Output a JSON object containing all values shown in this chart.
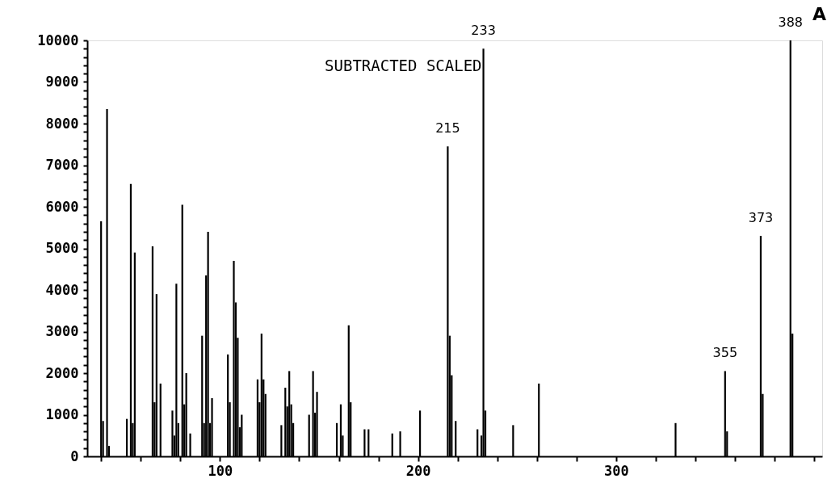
{
  "chart_data": {
    "type": "bar",
    "title": "SUBTRACTED SCALED",
    "x": [
      40,
      41,
      43,
      44,
      53,
      55,
      56,
      57,
      66,
      67,
      68,
      70,
      76,
      77,
      78,
      79,
      81,
      82,
      83,
      85,
      91,
      92,
      93,
      94,
      95,
      96,
      104,
      105,
      107,
      108,
      109,
      110,
      111,
      119,
      120,
      121,
      122,
      123,
      131,
      133,
      134,
      135,
      136,
      137,
      145,
      147,
      148,
      149,
      159,
      161,
      162,
      165,
      166,
      173,
      175,
      187,
      191,
      201,
      215,
      216,
      217,
      219,
      230,
      232,
      233,
      234,
      248,
      261,
      330,
      355,
      356,
      373,
      374,
      388,
      389
    ],
    "values": [
      5650,
      850,
      8350,
      250,
      900,
      6550,
      800,
      4900,
      5050,
      1300,
      3900,
      1750,
      1100,
      500,
      4150,
      800,
      6050,
      1250,
      2000,
      550,
      2900,
      800,
      4350,
      5400,
      800,
      1400,
      2450,
      1300,
      4700,
      3700,
      2850,
      700,
      1000,
      1850,
      1300,
      2950,
      1850,
      1500,
      750,
      1650,
      1200,
      2050,
      1250,
      800,
      1000,
      2050,
      1050,
      1550,
      800,
      1250,
      500,
      3150,
      1300,
      650,
      650,
      550,
      600,
      1100,
      7450,
      2900,
      1950,
      850,
      650,
      500,
      9800,
      1100,
      750,
      1750,
      800,
      2050,
      600,
      5300,
      1500,
      10000,
      2950
    ],
    "color": "#000000",
    "xlim": [
      33,
      404
    ],
    "xticks": [
      {
        "value": 40,
        "label": null
      },
      {
        "value": 60,
        "label": null
      },
      {
        "value": 80,
        "label": null
      },
      100,
      {
        "value": 120,
        "label": null
      },
      {
        "value": 140,
        "label": null
      },
      {
        "value": 160,
        "label": null
      },
      {
        "value": 180,
        "label": null
      },
      200,
      {
        "value": 220,
        "label": null
      },
      {
        "value": 240,
        "label": null
      },
      {
        "value": 260,
        "label": null
      },
      {
        "value": 280,
        "label": null
      },
      300,
      {
        "value": 320,
        "label": null
      },
      {
        "value": 340,
        "label": null
      },
      {
        "value": 360,
        "label": null
      },
      {
        "value": 380,
        "label": null
      },
      {
        "value": 400,
        "label": null
      }
    ],
    "ylim": [
      0,
      10000
    ],
    "yticks": [
      0,
      {
        "value": 200,
        "label": null
      },
      {
        "value": 400,
        "label": null
      },
      {
        "value": 600,
        "label": null
      },
      {
        "value": 800,
        "label": null
      },
      1000,
      {
        "value": 1200,
        "label": null
      },
      {
        "value": 1400,
        "label": null
      },
      {
        "value": 1600,
        "label": null
      },
      {
        "value": 1800,
        "label": null
      },
      2000,
      {
        "value": 2200,
        "label": null
      },
      {
        "value": 2400,
        "label": null
      },
      {
        "value": 2600,
        "label": null
      },
      {
        "value": 2800,
        "label": null
      },
      3000,
      {
        "value": 3200,
        "label": null
      },
      {
        "value": 3400,
        "label": null
      },
      {
        "value": 3600,
        "label": null
      },
      {
        "value": 3800,
        "label": null
      },
      4000,
      {
        "value": 4200,
        "label": null
      },
      {
        "value": 4400,
        "label": null
      },
      {
        "value": 4600,
        "label": null
      },
      {
        "value": 4800,
        "label": null
      },
      5000,
      {
        "value": 5200,
        "label": null
      },
      {
        "value": 5400,
        "label": null
      },
      {
        "value": 5600,
        "label": null
      },
      {
        "value": 5800,
        "label": null
      },
      6000,
      {
        "value": 6200,
        "label": null
      },
      {
        "value": 6400,
        "label": null
      },
      {
        "value": 6600,
        "label": null
      },
      {
        "value": 6800,
        "label": null
      },
      7000,
      {
        "value": 7200,
        "label": null
      },
      {
        "value": 7400,
        "label": null
      },
      {
        "value": 7600,
        "label": null
      },
      {
        "value": 7800,
        "label": null
      },
      8000,
      {
        "value": 8200,
        "label": null
      },
      {
        "value": 8400,
        "label": null
      },
      {
        "value": 8600,
        "label": null
      },
      {
        "value": 8800,
        "label": null
      },
      9000,
      {
        "value": 9200,
        "label": null
      },
      {
        "value": 9400,
        "label": null
      },
      {
        "value": 9600,
        "label": null
      },
      {
        "value": 9800,
        "label": null
      },
      10000
    ],
    "grid": false,
    "annotations": [
      {
        "text": "215",
        "x": 215,
        "y": 7450
      },
      {
        "text": "233",
        "x": 233,
        "y": 9800
      },
      {
        "text": "355",
        "x": 355,
        "y": 2050
      },
      {
        "text": "373",
        "x": 373,
        "y": 5300
      },
      {
        "text": "388",
        "x": 388,
        "y": 10000
      },
      "A"
    ]
  }
}
